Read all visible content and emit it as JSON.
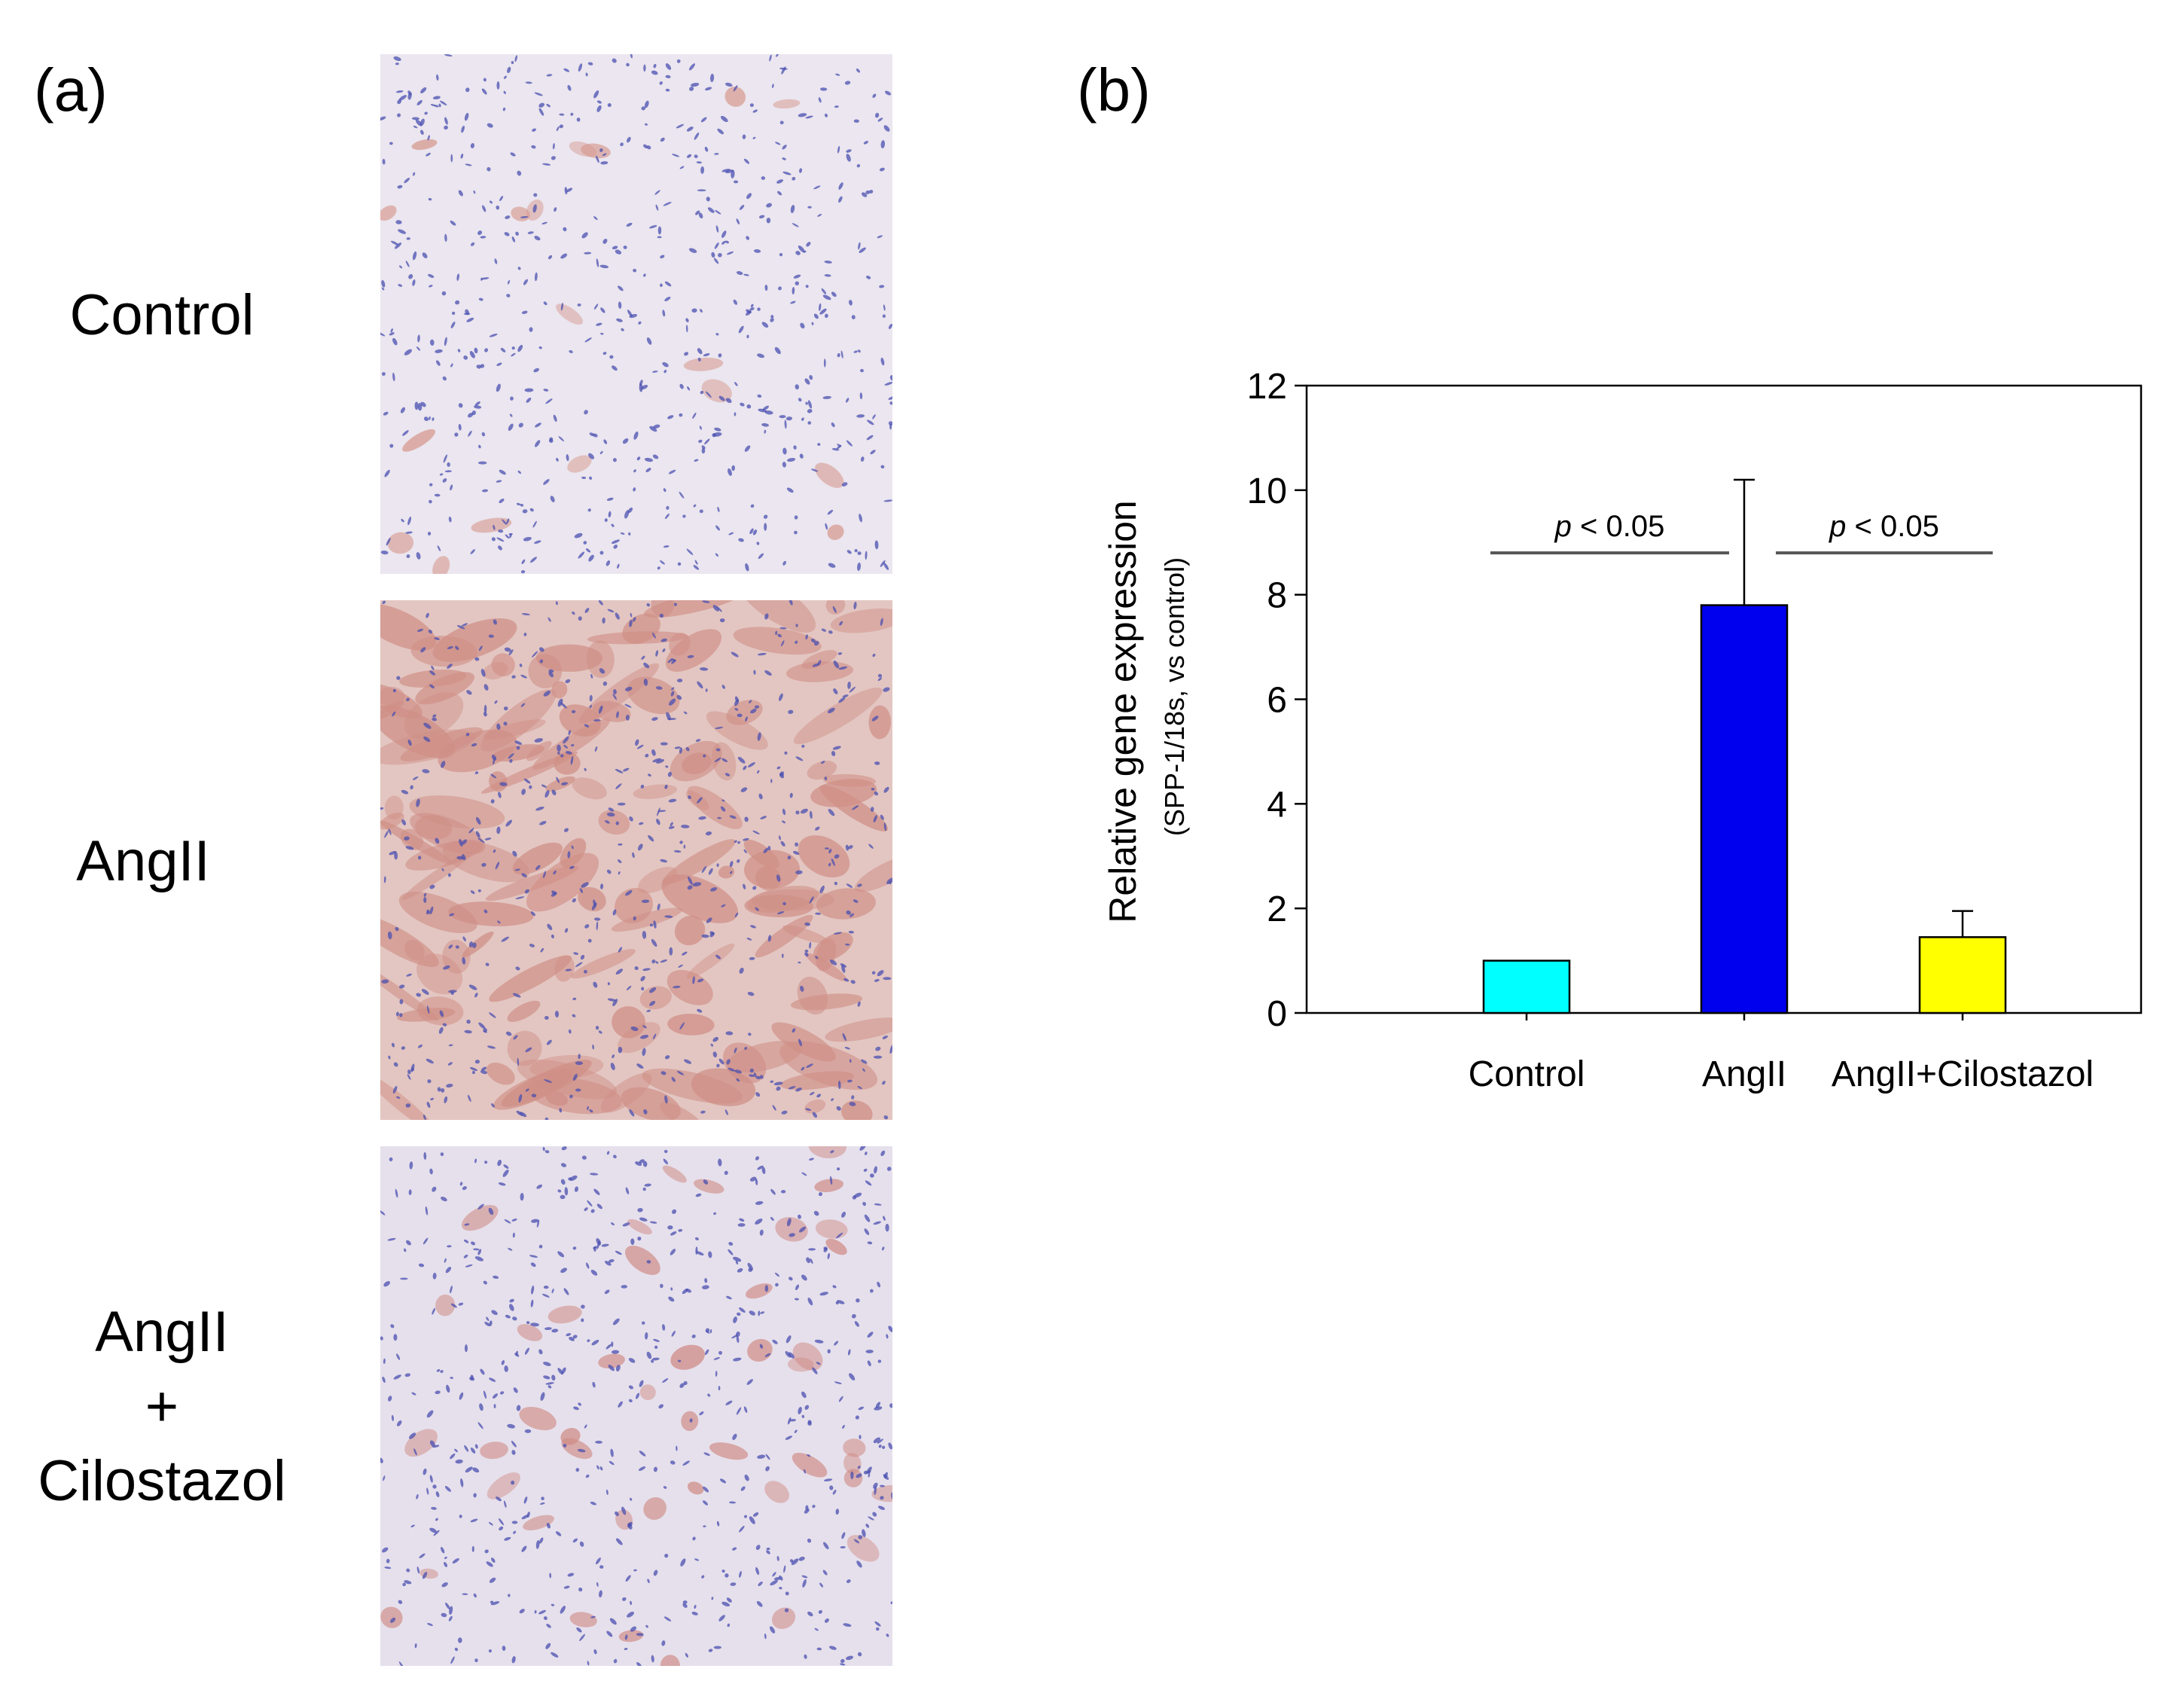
{
  "panels": {
    "a_label": "(a)",
    "b_label": "(b)"
  },
  "micrographs": [
    {
      "label_lines": [
        "Control"
      ],
      "stain_level": "low",
      "tint": "#ebe6ef",
      "stain_color": "#d6998f"
    },
    {
      "label_lines": [
        "AngII"
      ],
      "stain_level": "high",
      "tint": "#e3c6c2",
      "stain_color": "#cf8f86"
    },
    {
      "label_lines": [
        "AngII",
        "+",
        "Cilostazol"
      ],
      "stain_level": "medium",
      "tint": "#e6e0ec",
      "stain_color": "#cf8a84"
    }
  ],
  "nuclei_color": "#4a4fb0",
  "chart_data": {
    "type": "bar",
    "categories": [
      "Control",
      "AngII",
      "AngII+Cilostazol"
    ],
    "values": [
      1.0,
      7.8,
      1.45
    ],
    "errors": [
      0,
      2.4,
      0.5
    ],
    "colors": [
      "#00ffff",
      "#0000ee",
      "#ffff00"
    ],
    "ylabel": "Relative gene expression",
    "ylabel_sub": "(SPP-1/18s, vs control)",
    "ylim": [
      0,
      12
    ],
    "yticks": [
      "0",
      "2",
      "4",
      "6",
      "8",
      "10",
      "12"
    ],
    "grid": false,
    "annotations": [
      {
        "italic": "p",
        "text": " < 0.05",
        "from": "Control",
        "to": "AngII",
        "y": 8.8
      },
      {
        "italic": "p",
        "text": " < 0.05",
        "from": "AngII",
        "to": "AngII+Cilostazol",
        "y": 8.8
      }
    ]
  }
}
